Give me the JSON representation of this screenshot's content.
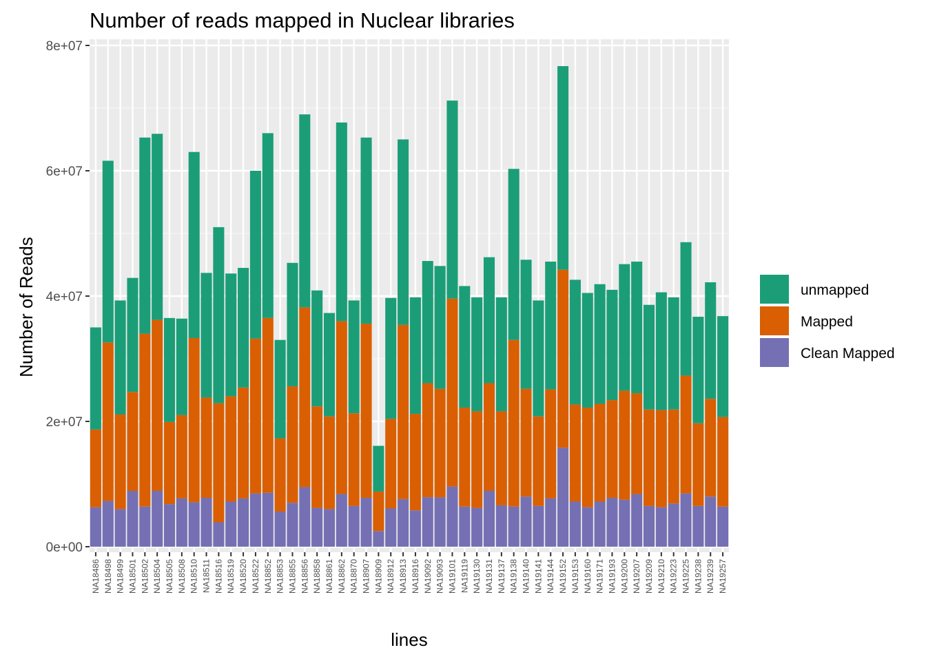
{
  "chart_data": {
    "type": "bar",
    "stacked": true,
    "title": "Number of reads mapped in Nuclear libraries",
    "xlabel": "lines",
    "ylabel": "Number of Reads",
    "ylim": [
      0,
      80000000
    ],
    "yticks": [
      {
        "value": 0,
        "label": "0e+00"
      },
      {
        "value": 20000000,
        "label": "2e+07"
      },
      {
        "value": 40000000,
        "label": "4e+07"
      },
      {
        "value": 60000000,
        "label": "6e+07"
      },
      {
        "value": 80000000,
        "label": "8e+07"
      }
    ],
    "grid": true,
    "legend_position": "right",
    "categories": [
      "NA18486",
      "NA18498",
      "NA18499",
      "NA18501",
      "NA18502",
      "NA18504",
      "NA18505",
      "NA18508",
      "NA18510",
      "NA18511",
      "NA18516",
      "NA18519",
      "NA18520",
      "NA18522",
      "NA18852",
      "NA18853",
      "NA18855",
      "NA18856",
      "NA18858",
      "NA18861",
      "NA18862",
      "NA18870",
      "NA18907",
      "NA18909",
      "NA18912",
      "NA18913",
      "NA18916",
      "NA19092",
      "NA19093",
      "NA19101",
      "NA19119",
      "NA19130",
      "NA19131",
      "NA19137",
      "NA19138",
      "NA19140",
      "NA19141",
      "NA19144",
      "NA19152",
      "NA19153",
      "NA19160",
      "NA19171",
      "NA19193",
      "NA19200",
      "NA19207",
      "NA19209",
      "NA19210",
      "NA19223",
      "NA19225",
      "NA19238",
      "NA19239",
      "NA19257"
    ],
    "series": [
      {
        "name": "Clean Mapped",
        "color": "#7570B3",
        "values": [
          6300000,
          7300000,
          6000000,
          8900000,
          6400000,
          8900000,
          6800000,
          7700000,
          7100000,
          7800000,
          3900000,
          7200000,
          7700000,
          8500000,
          8600000,
          5600000,
          7000000,
          9500000,
          6200000,
          6000000,
          8400000,
          6500000,
          7800000,
          2500000,
          6100000,
          7600000,
          5800000,
          7900000,
          7900000,
          9600000,
          6400000,
          6200000,
          8900000,
          6600000,
          6400000,
          8000000,
          6500000,
          7700000,
          15800000,
          7200000,
          6300000,
          7200000,
          7800000,
          7500000,
          8400000,
          6500000,
          6300000,
          6900000,
          8500000,
          6500000,
          8000000,
          6400000
        ]
      },
      {
        "name": "Mapped",
        "color": "#D95F02",
        "values": [
          12400000,
          25300000,
          15100000,
          15800000,
          27600000,
          27300000,
          13100000,
          13300000,
          26200000,
          16000000,
          19000000,
          16800000,
          17700000,
          24700000,
          27900000,
          11700000,
          18600000,
          28700000,
          16200000,
          14800000,
          27600000,
          14800000,
          27800000,
          6300000,
          14300000,
          27800000,
          15400000,
          18200000,
          17300000,
          30000000,
          15800000,
          15400000,
          17200000,
          15000000,
          26600000,
          17200000,
          14300000,
          17400000,
          28400000,
          15500000,
          15900000,
          15600000,
          15600000,
          17400000,
          16100000,
          15400000,
          15500000,
          15000000,
          18800000,
          13200000,
          15600000,
          14300000
        ]
      },
      {
        "name": "unmapped",
        "color": "#1B9E77",
        "values": [
          16300000,
          29000000,
          18200000,
          18200000,
          31300000,
          29700000,
          16600000,
          15400000,
          29700000,
          19900000,
          28100000,
          19600000,
          19100000,
          26800000,
          29500000,
          15700000,
          19700000,
          30800000,
          18500000,
          16500000,
          31700000,
          18000000,
          29700000,
          7300000,
          19300000,
          29600000,
          18600000,
          19500000,
          19600000,
          31600000,
          19400000,
          18200000,
          20100000,
          18200000,
          27300000,
          20600000,
          18500000,
          20400000,
          32500000,
          19900000,
          18300000,
          19100000,
          17600000,
          20200000,
          21000000,
          16700000,
          18800000,
          17900000,
          21300000,
          17000000,
          18600000,
          16100000
        ]
      }
    ],
    "legend": [
      "unmapped",
      "Mapped",
      "Clean Mapped"
    ]
  },
  "colors": {
    "panel_background": "#EBEBEB",
    "grid_major": "#FFFFFF"
  }
}
